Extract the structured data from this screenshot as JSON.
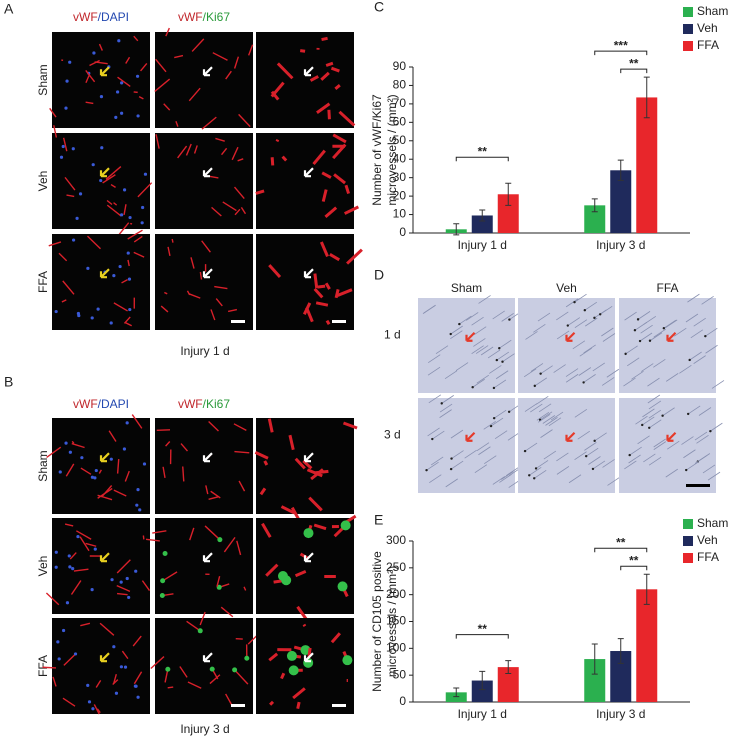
{
  "panels": [
    {
      "label": "A",
      "columns": [
        [
          "vWF",
          "/DAPI"
        ],
        [
          "vWF",
          "/Ki67"
        ]
      ],
      "rows": [
        "Sham",
        "Veh",
        "FFA"
      ],
      "caption": "Injury 1 d"
    },
    {
      "label": "B",
      "columns": [
        [
          "vWF",
          "/DAPI"
        ],
        [
          "vWF",
          "/Ki67"
        ]
      ],
      "rows": [
        "Sham",
        "Veh",
        "FFA"
      ],
      "caption": "Injury 3 d"
    },
    {
      "label": "D",
      "columns": [
        "Sham",
        "Veh",
        "FFA"
      ],
      "rows": [
        "1 d",
        "3 d"
      ]
    }
  ],
  "chart_data": [
    {
      "type": "bar",
      "panel": "C",
      "y_label": [
        "Number of vWF/Ki67",
        "microvessels / (mm²)"
      ],
      "categories": [
        "Injury 1 d",
        "Injury 3 d"
      ],
      "series": [
        {
          "name": "Sham",
          "color": "#2bb04f",
          "values": [
            2,
            15
          ],
          "errors": [
            3,
            3.5
          ]
        },
        {
          "name": "Veh",
          "color": "#1f2a5c",
          "values": [
            9.5,
            34
          ],
          "errors": [
            3,
            5.5
          ]
        },
        {
          "name": "FFA",
          "color": "#e8262b",
          "values": [
            21,
            73.5
          ],
          "errors": [
            6,
            11
          ]
        }
      ],
      "ylim": [
        0,
        90
      ],
      "yticks": [
        0,
        10,
        20,
        30,
        40,
        50,
        60,
        70,
        80,
        90
      ],
      "legend": "top-right",
      "annotations": [
        {
          "text": "**",
          "category": "Injury 1 d",
          "pair": [
            "Sham",
            "FFA"
          ]
        },
        {
          "text": "***",
          "category": "Injury 3 d",
          "pair": [
            "Sham",
            "FFA"
          ]
        },
        {
          "text": "**",
          "category": "Injury 3 d",
          "pair": [
            "Veh",
            "FFA"
          ]
        }
      ]
    },
    {
      "type": "bar",
      "panel": "E",
      "y_label": [
        "Number of CD105 positive",
        "microvessels / (mm²)"
      ],
      "categories": [
        "Injury 1 d",
        "Injury 3 d"
      ],
      "series": [
        {
          "name": "Sham",
          "color": "#2bb04f",
          "values": [
            18,
            80
          ],
          "errors": [
            8,
            28
          ]
        },
        {
          "name": "Veh",
          "color": "#1f2a5c",
          "values": [
            40,
            95
          ],
          "errors": [
            17,
            23
          ]
        },
        {
          "name": "FFA",
          "color": "#e8262b",
          "values": [
            65,
            210
          ],
          "errors": [
            12,
            28
          ]
        }
      ],
      "ylim": [
        0,
        300
      ],
      "yticks": [
        0,
        50,
        100,
        150,
        200,
        250,
        300
      ],
      "legend": "top-right",
      "annotations": [
        {
          "text": "**",
          "category": "Injury 1 d",
          "pair": [
            "Sham",
            "FFA"
          ]
        },
        {
          "text": "**",
          "category": "Injury 3 d",
          "pair": [
            "Sham",
            "FFA"
          ]
        },
        {
          "text": "**",
          "category": "Injury 3 d",
          "pair": [
            "Veh",
            "FFA"
          ]
        }
      ]
    }
  ]
}
